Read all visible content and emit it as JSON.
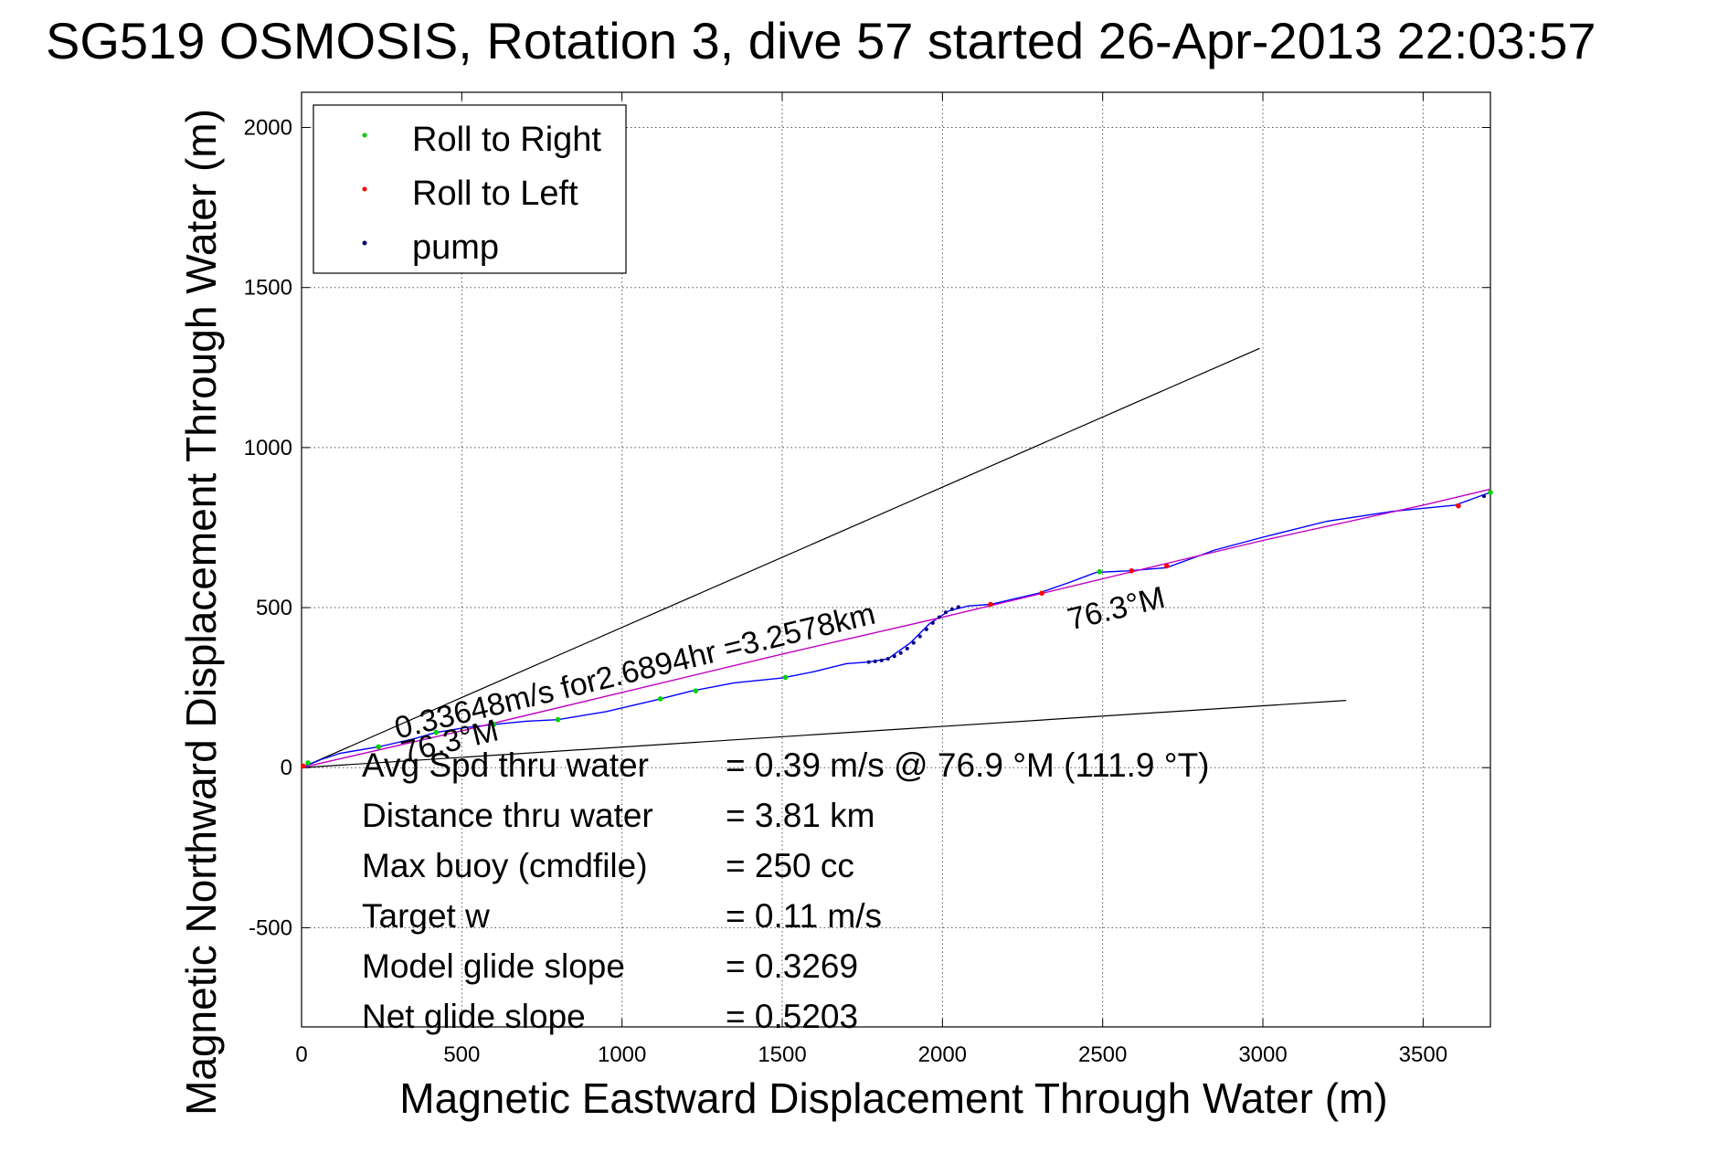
{
  "chart_data": {
    "type": "line",
    "title": "SG519 OSMOSIS, Rotation 3, dive 57 started 26-Apr-2013 22:03:57",
    "xlabel": "Magnetic Eastward Displacement Through Water (m)",
    "ylabel": "Magnetic Northward Displacement Through Water (m)",
    "xlim": [
      0,
      3710
    ],
    "ylim": [
      -810,
      2110
    ],
    "xticks": [
      0,
      500,
      1000,
      1500,
      2000,
      2500,
      3000,
      3500
    ],
    "yticks": [
      -500,
      0,
      500,
      1000,
      1500,
      2000
    ],
    "grid": true,
    "legend": {
      "placement": "top-left",
      "entries": [
        {
          "label": "Roll to Right",
          "color": "#00d000"
        },
        {
          "label": "Roll to Left",
          "color": "#ff0000"
        },
        {
          "label": "pump",
          "color": "#000080"
        }
      ]
    },
    "series": [
      {
        "color": "#0000ff",
        "x": [
          0,
          60,
          120,
          240,
          350,
          420,
          510,
          600,
          700,
          800,
          950,
          1100,
          1220,
          1350,
          1500,
          1600,
          1700,
          1770,
          1830,
          1900,
          1960,
          2020,
          2080,
          2150,
          2300,
          2400,
          2480,
          2580,
          2700,
          2850,
          3000,
          3200,
          3400,
          3600,
          3710
        ],
        "y": [
          0,
          25,
          45,
          65,
          90,
          110,
          125,
          135,
          145,
          150,
          175,
          210,
          240,
          265,
          280,
          300,
          325,
          330,
          340,
          390,
          450,
          490,
          505,
          510,
          545,
          580,
          610,
          615,
          625,
          680,
          720,
          770,
          800,
          820,
          860
        ]
      },
      {
        "color": "#c000c0",
        "x": [
          0,
          500,
          1000,
          1500,
          2000,
          2500,
          3000,
          3500,
          3710
        ],
        "y": [
          0,
          115,
          235,
          355,
          470,
          590,
          710,
          820,
          870
        ]
      }
    ],
    "markers": {
      "roll_right": {
        "color": "#00d000",
        "x": [
          20,
          240,
          420,
          600,
          800,
          1120,
          1230,
          1510,
          2490,
          3710
        ],
        "y": [
          15,
          65,
          110,
          135,
          150,
          215,
          240,
          282,
          612,
          860
        ]
      },
      "roll_left": {
        "color": "#ff0000",
        "x": [
          5,
          2150,
          2310,
          2590,
          2700,
          3610
        ],
        "y": [
          5,
          510,
          545,
          615,
          630,
          818
        ]
      },
      "pump": {
        "color": "#000080",
        "x": [
          1770,
          1790,
          1810,
          1830,
          1850,
          1870,
          1890,
          1910,
          1930,
          1950,
          1970,
          1990,
          2010,
          2030,
          2050,
          3690
        ],
        "y": [
          330,
          332,
          335,
          340,
          348,
          358,
          372,
          390,
          410,
          432,
          452,
          470,
          485,
          495,
          502,
          848
        ]
      }
    },
    "reference_lines": [
      {
        "x": [
          0,
          2990
        ],
        "y": [
          0,
          1310
        ]
      },
      {
        "x": [
          0,
          3260
        ],
        "y": [
          0,
          210
        ]
      }
    ],
    "annotations": [
      {
        "text": "0.33648m/s for2.6894hr =3.2578km",
        "x": 300,
        "y": 90,
        "angle": -13.6
      },
      {
        "text": "76.3°M",
        "x": 320,
        "y": 15,
        "angle": -13.6
      },
      {
        "text": "76.3°M",
        "x": 2400,
        "y": 430,
        "angle": -13.6
      }
    ],
    "stats": [
      {
        "label": "Avg Spd thru water",
        "value": "=  0.39 m/s @  76.9 °M (111.9 °T)"
      },
      {
        "label": "Distance thru water",
        "value": "=  3.81 km"
      },
      {
        "label": "Max buoy (cmdfile)",
        "value": "= 250 cc"
      },
      {
        "label": "Target w",
        "value": "= 0.11 m/s"
      },
      {
        "label": "Model glide slope",
        "value": "= 0.3269"
      },
      {
        "label": "Net glide slope",
        "value": "= 0.5203"
      }
    ]
  }
}
